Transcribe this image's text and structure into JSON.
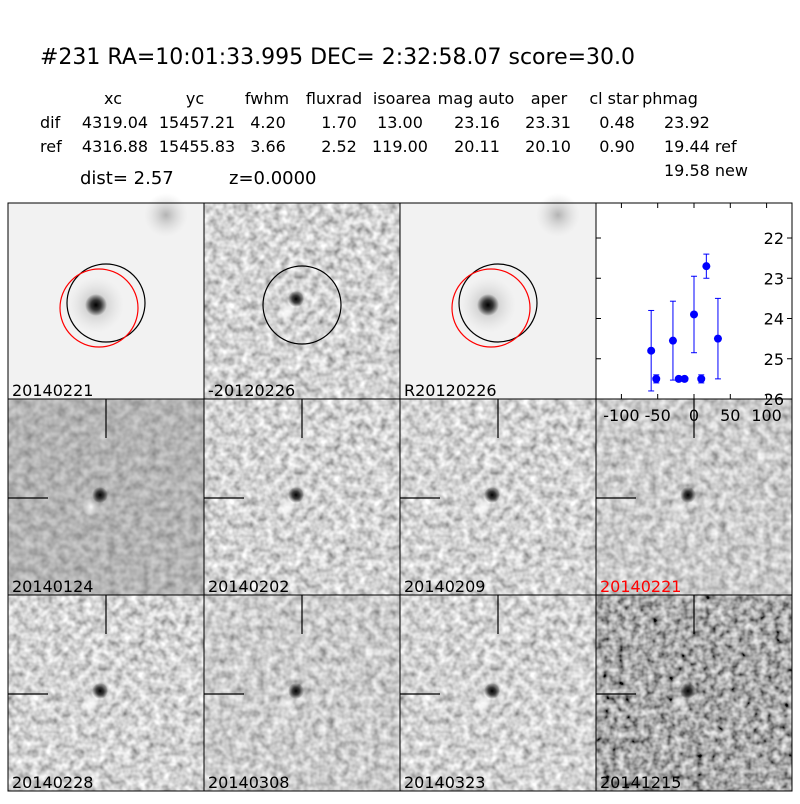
{
  "header": {
    "title": "#231   RA=10:01:33.995 DEC= 2:32:58.07       score=30.0"
  },
  "table": {
    "columns": [
      "xc",
      "yc",
      "fwhm",
      "fluxrad",
      "isoarea",
      "mag auto",
      "aper",
      "cl star",
      "phmag"
    ],
    "rows": [
      {
        "label": "dif",
        "cells": [
          "4319.04",
          "15457.21",
          "4.20",
          "1.70",
          "13.00",
          "23.16",
          "23.31",
          "0.48",
          "23.92"
        ]
      },
      {
        "label": "ref",
        "cells": [
          "4316.88",
          "15455.83",
          "3.66",
          "2.52",
          "119.00",
          "20.11",
          "20.10",
          "0.90",
          "19.44 ref"
        ]
      }
    ],
    "extra": "19.58 new",
    "dist": "dist=  2.57",
    "z": "z=0.0000"
  },
  "stamps": [
    {
      "label": "20140221"
    },
    {
      "label": "-20120226"
    },
    {
      "label": "R20120226"
    },
    {
      "label": "20140124"
    },
    {
      "label": "20140202"
    },
    {
      "label": "20140209"
    },
    {
      "label": "20140221",
      "color": "#ff0000"
    },
    {
      "label": "20140228"
    },
    {
      "label": "20140308"
    },
    {
      "label": "20140323"
    },
    {
      "label": "20141215"
    }
  ],
  "chart_data": {
    "type": "errorbar",
    "color": "#0000ff",
    "x": [
      -59,
      -52,
      -29,
      -21,
      -13,
      0,
      10,
      17,
      33
    ],
    "values": [
      24.8,
      25.5,
      24.55,
      25.5,
      25.5,
      23.9,
      25.5,
      22.7,
      24.5
    ],
    "errors": [
      1.0,
      0.1,
      0.98,
      0.05,
      0.05,
      0.95,
      0.1,
      0.3,
      1.0
    ],
    "xlim": [
      -135,
      135
    ],
    "xticks": [
      -100,
      -50,
      0,
      50,
      100
    ],
    "ylim": [
      26,
      21.13
    ],
    "yticks": [
      22,
      23,
      24,
      25,
      26
    ]
  }
}
